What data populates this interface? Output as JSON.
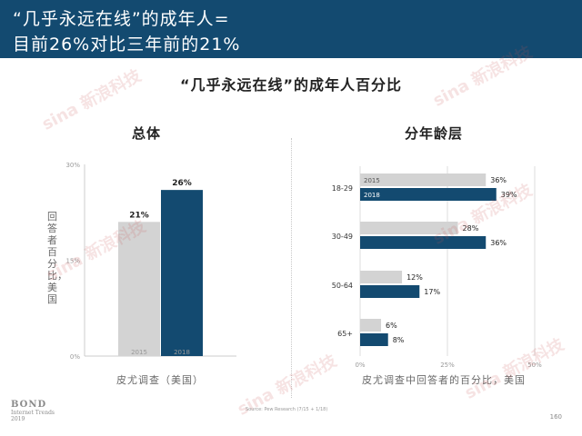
{
  "header": {
    "line1": "“几乎永远在线”的成年人=",
    "line2": "目前26%对比三年前的21%"
  },
  "subtitle": "“几乎永远在线”的成年人百分比",
  "footer": {
    "logo_brand": "BOND",
    "logo_sub1": "Internet Trends",
    "logo_sub2": "2019",
    "source": "Source: Pew Research (7/15 + 1/18)",
    "page": "160"
  },
  "watermark": "sina 新浪科技",
  "colors": {
    "y2015": "#d3d3d3",
    "y2018": "#134a70",
    "header": "#134a70"
  },
  "chart_data": [
    {
      "type": "bar",
      "title": "总体",
      "categories": [
        "2015",
        "2018"
      ],
      "values": [
        21,
        26
      ],
      "value_labels": [
        "21%",
        "26%"
      ],
      "ylabel": "回答者百分比，美国",
      "xlabel": "皮尤调查（美国）",
      "ylim": [
        0,
        30
      ],
      "yticks": [
        "0%",
        "15%",
        "30%"
      ],
      "grid": false
    },
    {
      "type": "bar",
      "orientation": "horizontal",
      "title": "分年龄层",
      "categories": [
        "18-29",
        "30-49",
        "50-64",
        "65+"
      ],
      "series": [
        {
          "name": "2015",
          "values": [
            36,
            28,
            12,
            6
          ],
          "value_labels": [
            "36%",
            "28%",
            "12%",
            "6%"
          ]
        },
        {
          "name": "2018",
          "values": [
            39,
            36,
            17,
            8
          ],
          "value_labels": [
            "39%",
            "36%",
            "17%",
            "8%"
          ]
        }
      ],
      "xlabel": "皮尤调查中回答者的百分比，美国",
      "xlim": [
        0,
        50
      ],
      "xticks": [
        "0%",
        "25%",
        "50%"
      ],
      "grid": true
    }
  ]
}
